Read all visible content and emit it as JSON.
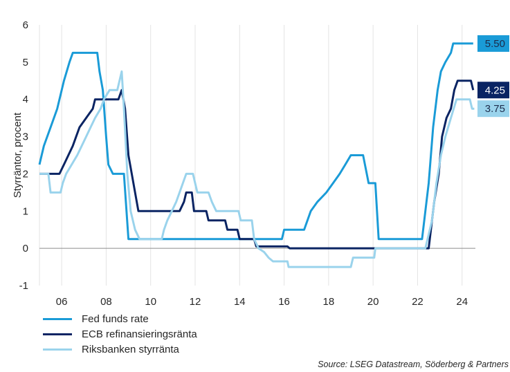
{
  "chart_data": {
    "type": "line",
    "title": "",
    "ylabel": "Styrräntor, procent",
    "xlabel": "",
    "xlim": [
      2005.0,
      2024.6
    ],
    "ylim": [
      -1,
      6
    ],
    "yticks": [
      -1,
      0,
      1,
      2,
      3,
      4,
      5,
      6
    ],
    "xticks": [
      2006,
      2008,
      2010,
      2012,
      2014,
      2016,
      2018,
      2020,
      2022,
      2024
    ],
    "xtick_labels": [
      "06",
      "08",
      "10",
      "12",
      "14",
      "16",
      "18",
      "20",
      "22",
      "24"
    ],
    "grid": "vertical",
    "legend_position": "bottom-left",
    "series": [
      {
        "name": "Fed funds rate",
        "color": "#1a9bd7",
        "end_label": "5.50",
        "points": [
          [
            2005.0,
            2.25
          ],
          [
            2005.2,
            2.75
          ],
          [
            2005.5,
            3.25
          ],
          [
            2005.8,
            3.75
          ],
          [
            2006.1,
            4.5
          ],
          [
            2006.35,
            5.0
          ],
          [
            2006.5,
            5.25
          ],
          [
            2007.6,
            5.25
          ],
          [
            2007.7,
            4.75
          ],
          [
            2007.85,
            4.25
          ],
          [
            2008.0,
            3.0
          ],
          [
            2008.1,
            2.25
          ],
          [
            2008.3,
            2.0
          ],
          [
            2008.8,
            2.0
          ],
          [
            2009.0,
            0.25
          ],
          [
            2015.9,
            0.25
          ],
          [
            2016.0,
            0.5
          ],
          [
            2016.9,
            0.5
          ],
          [
            2017.2,
            1.0
          ],
          [
            2017.5,
            1.25
          ],
          [
            2017.9,
            1.5
          ],
          [
            2018.2,
            1.75
          ],
          [
            2018.5,
            2.0
          ],
          [
            2018.75,
            2.25
          ],
          [
            2019.0,
            2.5
          ],
          [
            2019.55,
            2.5
          ],
          [
            2019.8,
            1.75
          ],
          [
            2020.1,
            1.75
          ],
          [
            2020.25,
            0.25
          ],
          [
            2022.2,
            0.25
          ],
          [
            2022.35,
            1.0
          ],
          [
            2022.5,
            1.75
          ],
          [
            2022.7,
            3.25
          ],
          [
            2022.9,
            4.25
          ],
          [
            2023.05,
            4.75
          ],
          [
            2023.25,
            5.0
          ],
          [
            2023.5,
            5.25
          ],
          [
            2023.6,
            5.5
          ],
          [
            2024.5,
            5.5
          ]
        ]
      },
      {
        "name": "ECB refinansieringsränta",
        "color": "#0a2463",
        "end_label": "4.25",
        "points": [
          [
            2005.0,
            2.0
          ],
          [
            2005.9,
            2.0
          ],
          [
            2006.1,
            2.25
          ],
          [
            2006.3,
            2.5
          ],
          [
            2006.5,
            2.75
          ],
          [
            2006.65,
            3.0
          ],
          [
            2006.8,
            3.25
          ],
          [
            2007.1,
            3.5
          ],
          [
            2007.4,
            3.75
          ],
          [
            2007.5,
            4.0
          ],
          [
            2008.55,
            4.0
          ],
          [
            2008.7,
            4.25
          ],
          [
            2008.85,
            3.75
          ],
          [
            2009.0,
            2.5
          ],
          [
            2009.15,
            2.0
          ],
          [
            2009.3,
            1.5
          ],
          [
            2009.45,
            1.0
          ],
          [
            2011.3,
            1.0
          ],
          [
            2011.5,
            1.25
          ],
          [
            2011.6,
            1.5
          ],
          [
            2011.85,
            1.5
          ],
          [
            2011.95,
            1.0
          ],
          [
            2012.5,
            1.0
          ],
          [
            2012.6,
            0.75
          ],
          [
            2013.35,
            0.75
          ],
          [
            2013.45,
            0.5
          ],
          [
            2013.9,
            0.5
          ],
          [
            2014.0,
            0.25
          ],
          [
            2014.65,
            0.25
          ],
          [
            2014.75,
            0.05
          ],
          [
            2016.15,
            0.05
          ],
          [
            2016.25,
            0.0
          ],
          [
            2022.5,
            0.0
          ],
          [
            2022.6,
            0.5
          ],
          [
            2022.75,
            1.25
          ],
          [
            2022.95,
            2.0
          ],
          [
            2023.1,
            3.0
          ],
          [
            2023.3,
            3.5
          ],
          [
            2023.5,
            3.75
          ],
          [
            2023.65,
            4.25
          ],
          [
            2023.8,
            4.5
          ],
          [
            2024.4,
            4.5
          ],
          [
            2024.5,
            4.25
          ]
        ]
      },
      {
        "name": "Riksbanken styrränta",
        "color": "#9ad3ec",
        "end_label": "3.75",
        "points": [
          [
            2005.0,
            2.0
          ],
          [
            2005.4,
            2.0
          ],
          [
            2005.5,
            1.5
          ],
          [
            2005.95,
            1.5
          ],
          [
            2006.05,
            1.75
          ],
          [
            2006.2,
            2.0
          ],
          [
            2006.45,
            2.25
          ],
          [
            2006.7,
            2.5
          ],
          [
            2006.9,
            2.75
          ],
          [
            2007.1,
            3.0
          ],
          [
            2007.3,
            3.25
          ],
          [
            2007.5,
            3.5
          ],
          [
            2007.75,
            3.75
          ],
          [
            2007.9,
            4.0
          ],
          [
            2008.15,
            4.25
          ],
          [
            2008.5,
            4.25
          ],
          [
            2008.7,
            4.75
          ],
          [
            2008.8,
            3.75
          ],
          [
            2008.95,
            2.0
          ],
          [
            2009.1,
            1.0
          ],
          [
            2009.3,
            0.5
          ],
          [
            2009.5,
            0.25
          ],
          [
            2010.5,
            0.25
          ],
          [
            2010.6,
            0.5
          ],
          [
            2010.75,
            0.75
          ],
          [
            2010.95,
            1.0
          ],
          [
            2011.15,
            1.25
          ],
          [
            2011.3,
            1.5
          ],
          [
            2011.45,
            1.75
          ],
          [
            2011.6,
            2.0
          ],
          [
            2011.9,
            2.0
          ],
          [
            2012.0,
            1.75
          ],
          [
            2012.1,
            1.5
          ],
          [
            2012.6,
            1.5
          ],
          [
            2012.75,
            1.25
          ],
          [
            2012.95,
            1.0
          ],
          [
            2013.95,
            1.0
          ],
          [
            2014.05,
            0.75
          ],
          [
            2014.55,
            0.75
          ],
          [
            2014.65,
            0.25
          ],
          [
            2014.85,
            0.0
          ],
          [
            2015.1,
            -0.1
          ],
          [
            2015.3,
            -0.25
          ],
          [
            2015.5,
            -0.35
          ],
          [
            2016.15,
            -0.35
          ],
          [
            2016.2,
            -0.5
          ],
          [
            2019.0,
            -0.5
          ],
          [
            2019.1,
            -0.25
          ],
          [
            2020.05,
            -0.25
          ],
          [
            2020.1,
            0.0
          ],
          [
            2022.35,
            0.0
          ],
          [
            2022.45,
            0.25
          ],
          [
            2022.65,
            0.75
          ],
          [
            2022.85,
            1.75
          ],
          [
            2023.05,
            2.5
          ],
          [
            2023.25,
            3.0
          ],
          [
            2023.5,
            3.5
          ],
          [
            2023.75,
            4.0
          ],
          [
            2024.35,
            4.0
          ],
          [
            2024.45,
            3.75
          ],
          [
            2024.55,
            3.75
          ]
        ]
      }
    ]
  },
  "source": "Source: LSEG Datastream, Söderberg & Partners"
}
